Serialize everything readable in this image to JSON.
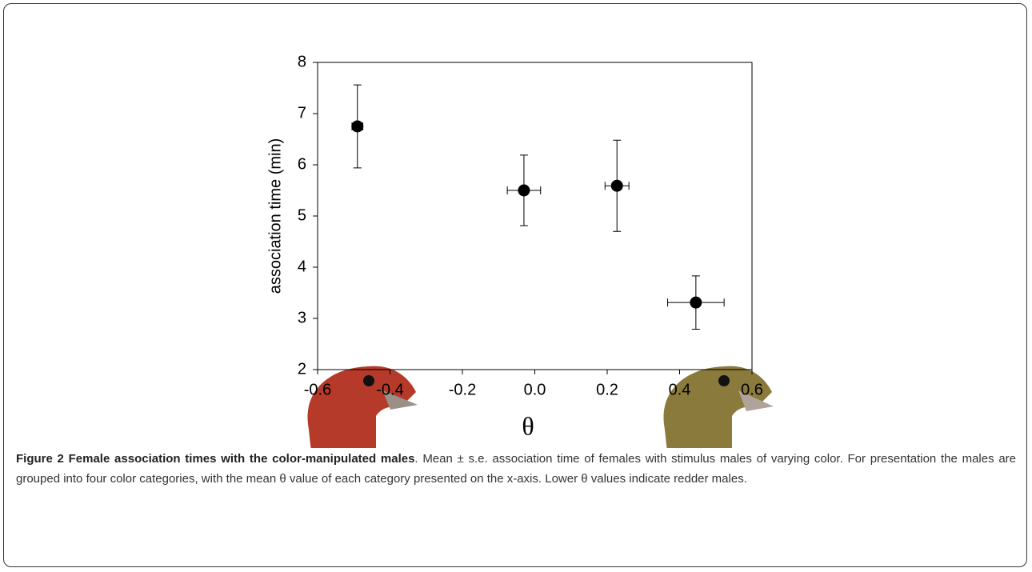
{
  "chart_data": {
    "type": "scatter",
    "ylabel": "association time (min)",
    "xlabel": "θ",
    "xlim": [
      -0.6,
      0.6
    ],
    "xticks": [
      -0.6,
      -0.4,
      -0.2,
      {
        "value": 0,
        "label": "0.0"
      },
      0.2,
      0.4,
      0.6
    ],
    "ylim": [
      2,
      8
    ],
    "yticks": [
      2,
      3,
      4,
      5,
      6,
      7,
      8
    ],
    "series": [
      {
        "color": "#000000",
        "x": [
          -0.49,
          -0.03,
          0.227,
          0.445
        ],
        "values": [
          6.75,
          5.5,
          5.59,
          3.31
        ],
        "x_err": [
          0.015,
          0.046,
          0.033,
          0.078
        ],
        "y_err": [
          0.81,
          0.69,
          0.89,
          0.52
        ]
      }
    ]
  },
  "caption": {
    "title": "Figure 2 Female association times with the color-manipulated males",
    "text": ". Mean ± s.e. association time of females with stimulus males of varying color. For presentation the males are grouped into four color categories, with the mean θ value of each category presented on the x-axis. Lower θ values indicate redder males."
  }
}
